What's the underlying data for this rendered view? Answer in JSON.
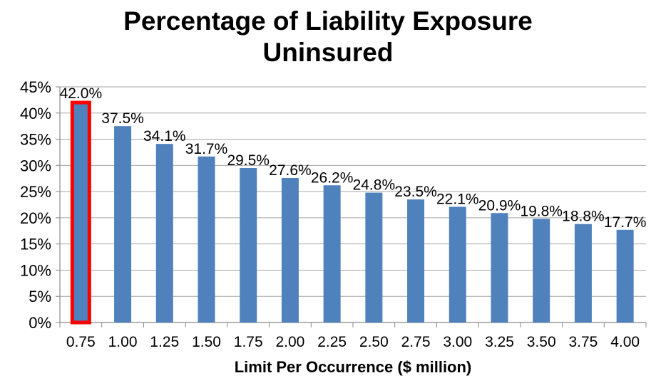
{
  "chart_data": {
    "type": "bar",
    "title": "Percentage of Liability Exposure Uninsured",
    "title_lines": [
      "Percentage of Liability Exposure",
      "Uninsured"
    ],
    "xlabel": "Limit Per Occurrence ($ million)",
    "ylabel": "",
    "categories": [
      "0.75",
      "1.00",
      "1.25",
      "1.50",
      "1.75",
      "2.00",
      "2.25",
      "2.50",
      "2.75",
      "3.00",
      "3.25",
      "3.50",
      "3.75",
      "4.00"
    ],
    "values": [
      42.0,
      37.5,
      34.1,
      31.7,
      29.5,
      27.6,
      26.2,
      24.8,
      23.5,
      22.1,
      20.9,
      19.8,
      18.8,
      17.7
    ],
    "data_labels": [
      "42.0%",
      "37.5%",
      "34.1%",
      "31.7%",
      "29.5%",
      "27.6%",
      "26.2%",
      "24.8%",
      "23.5%",
      "22.1%",
      "20.9%",
      "19.8%",
      "18.8%",
      "17.7%"
    ],
    "ylim": [
      0,
      45
    ],
    "yticks": [
      "0%",
      "5%",
      "10%",
      "15%",
      "20%",
      "25%",
      "30%",
      "35%",
      "40%",
      "45%"
    ],
    "grid": true,
    "legend": "none",
    "highlighted_category": "0.75",
    "colors": {
      "bar": "#4f81bd",
      "highlight_border": "#ff0000",
      "grid": "#a6a6a6"
    }
  }
}
